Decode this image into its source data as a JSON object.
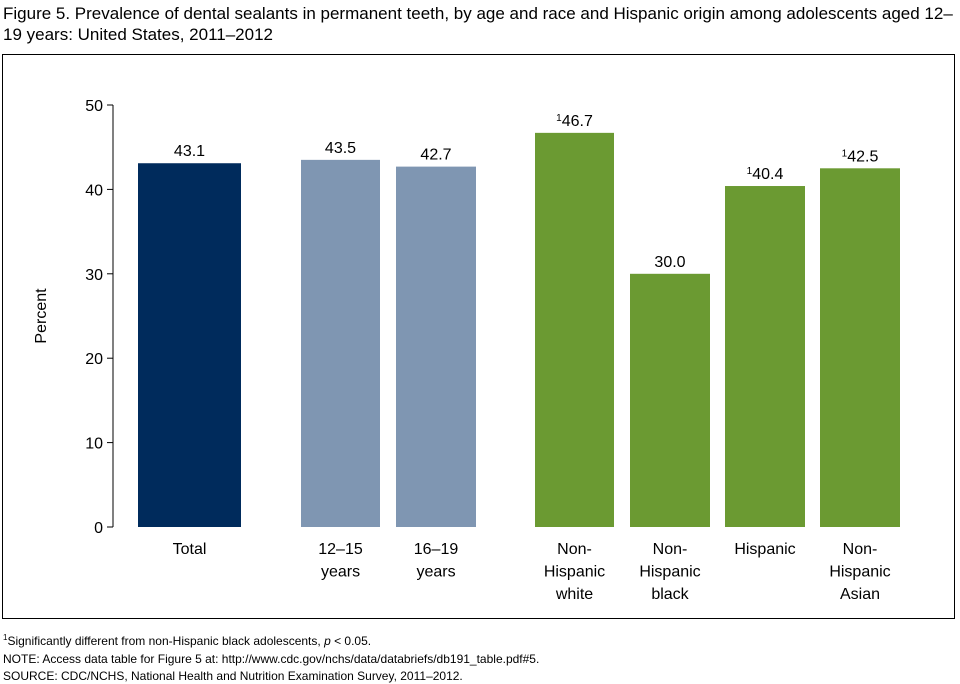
{
  "chart_data": {
    "type": "bar",
    "title": "Figure 5. Prevalence of dental sealants in permanent teeth, by age and race and Hispanic origin among adolescents aged 12–19 years: United States, 2011–2012",
    "xlabel": "",
    "ylabel": "Percent",
    "ylim": [
      0,
      50
    ],
    "yticks": [
      "0",
      "10",
      "20",
      "30",
      "40",
      "50"
    ],
    "grid": false,
    "categories": [
      {
        "lines": [
          "Total"
        ],
        "group": "total"
      },
      {
        "lines": [
          "12–15",
          "years"
        ],
        "group": "age"
      },
      {
        "lines": [
          "16–19",
          "years"
        ],
        "group": "age"
      },
      {
        "lines": [
          "Non-",
          "Hispanic",
          "white"
        ],
        "group": "race"
      },
      {
        "lines": [
          "Non-",
          "Hispanic",
          "black"
        ],
        "group": "race"
      },
      {
        "lines": [
          "Hispanic"
        ],
        "group": "race"
      },
      {
        "lines": [
          "Non-",
          "Hispanic",
          "Asian"
        ],
        "group": "race"
      }
    ],
    "values": [
      43.1,
      43.5,
      42.7,
      46.7,
      30.0,
      40.4,
      42.5
    ],
    "value_labels": [
      "43.1",
      "43.5",
      "42.7",
      "46.7",
      "30.0",
      "40.4",
      "42.5"
    ],
    "footnote_marks": [
      "",
      "",
      "",
      "1",
      "",
      "1",
      "1"
    ],
    "colors": {
      "total": "#002b5c",
      "age": "#7f96b2",
      "race": "#6b9a32"
    }
  },
  "footnotes": {
    "sig_mark": "1",
    "sig_text": "Significantly different from non-Hispanic black adolescents, ",
    "sig_p": "p",
    "sig_end": " < 0.05.",
    "note": "NOTE: Access data table for Figure 5 at: http://www.cdc.gov/nchs/data/databriefs/db191_table.pdf#5.",
    "source": "SOURCE: CDC/NCHS, National Health and Nutrition Examination Survey, 2011–2012."
  }
}
